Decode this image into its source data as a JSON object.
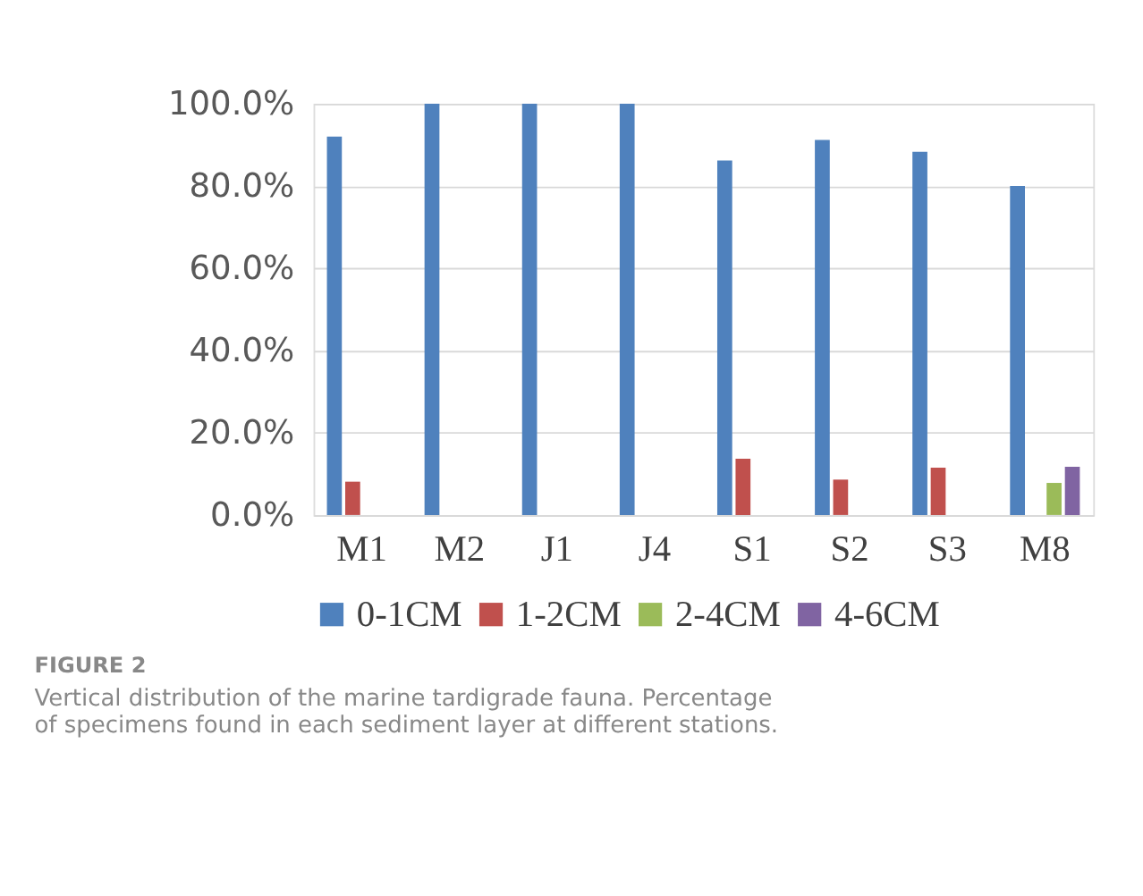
{
  "chart_data": {
    "type": "bar",
    "categories": [
      "M1",
      "M2",
      "J1",
      "J4",
      "S1",
      "S2",
      "S3",
      "M8"
    ],
    "series": [
      {
        "name": "0-1CM",
        "color": "#4f81bd",
        "values": [
          92,
          100,
          100,
          100,
          86.2,
          91.2,
          88.3,
          80
        ]
      },
      {
        "name": "1-2CM",
        "color": "#c0504d",
        "values": [
          8.1,
          null,
          null,
          null,
          13.7,
          8.6,
          11.5,
          null
        ]
      },
      {
        "name": "2-4CM",
        "color": "#9bbb59",
        "values": [
          null,
          null,
          null,
          null,
          null,
          null,
          null,
          7.8
        ]
      },
      {
        "name": "4-6CM",
        "color": "#8064a2",
        "values": [
          null,
          null,
          null,
          null,
          null,
          null,
          null,
          11.7
        ]
      }
    ],
    "ylim": [
      0,
      100
    ],
    "yticks": [
      {
        "value": 0,
        "label": "0.0%"
      },
      {
        "value": 20,
        "label": "20.0%"
      },
      {
        "value": 40,
        "label": "40.0%"
      },
      {
        "value": 60,
        "label": "60.0%"
      },
      {
        "value": 80,
        "label": "80.0%"
      },
      {
        "value": 100,
        "label": "100.0%"
      }
    ],
    "grid": "y",
    "legend": "bottom",
    "annotations": [
      "FIGURE 2",
      "Vertical distribution of the marine tardigrade fauna. Percentage of specimens found in each sediment layer at different stations."
    ]
  }
}
